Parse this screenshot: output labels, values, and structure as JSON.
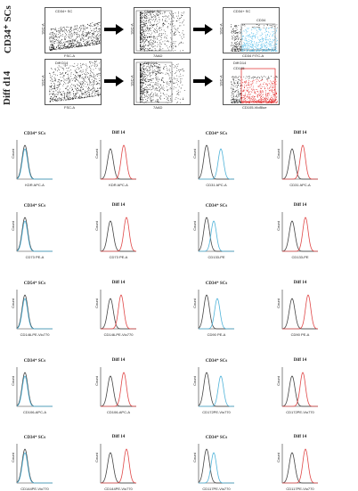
{
  "flow": {
    "row1": {
      "label": "CD34⁺ SCs",
      "plots": [
        {
          "gate": "CD34+ SC",
          "xlabel": "FSC-A",
          "ylabel": "SSC-A"
        },
        {
          "gate": "CD34+ SC",
          "xlabel": "7AAD",
          "ylabel": "SSC-A"
        },
        {
          "gate": "CD34+ SC",
          "gate2": "CD34",
          "xlabel": "CD34 FITC-A",
          "ylabel": "SSC-A"
        }
      ]
    },
    "row2": {
      "label": "Diff d14",
      "plots": [
        {
          "gate": "Diff D14",
          "xlabel": "FSC-A",
          "ylabel": "SSC-A"
        },
        {
          "gate": "Diff D14",
          "xlabel": "7AAD",
          "ylabel": "SSC-A"
        },
        {
          "gate": "Diff D14",
          "gate2": "CD105",
          "xlabel": "CD105-VioBlue",
          "ylabel": "SSC-A"
        }
      ]
    }
  },
  "histograms": [
    {
      "title": "CD34⁺ SCs",
      "xlabel": "KDR APC-A",
      "colors": [
        "#444444",
        "#4fb3d9"
      ]
    },
    {
      "title": "Diff 14",
      "xlabel": "KDR APC-A",
      "colors": [
        "#444444",
        "#e04848"
      ]
    },
    {
      "title": "CD34⁺ SCs",
      "xlabel": "CD31 APC-A",
      "colors": [
        "#444444",
        "#4fb3d9"
      ]
    },
    {
      "title": "Diff 14",
      "xlabel": "CD31 APC-A",
      "colors": [
        "#444444",
        "#e04848"
      ]
    },
    {
      "title": "CD34⁺ SCs",
      "xlabel": "CD73 PE-A",
      "colors": [
        "#444444",
        "#4fb3d9"
      ]
    },
    {
      "title": "Diff 14",
      "xlabel": "CD73 PE-A",
      "colors": [
        "#444444",
        "#e04848"
      ]
    },
    {
      "title": "CD34⁺ SCs",
      "xlabel": "CD133-PE",
      "colors": [
        "#444444",
        "#4fb3d9"
      ]
    },
    {
      "title": "Diff 14",
      "xlabel": "CD133-PE",
      "colors": [
        "#444444",
        "#e04848"
      ]
    },
    {
      "title": "CD54⁺ SCs",
      "xlabel": "CD146-PE-Vio770",
      "colors": [
        "#444444",
        "#4fb3d9"
      ]
    },
    {
      "title": "Diff 14",
      "xlabel": "CD146-PE-Vio770",
      "colors": [
        "#444444",
        "#e04848"
      ]
    },
    {
      "title": "CD34⁺ SCs",
      "xlabel": "CD90 PE-A",
      "colors": [
        "#444444",
        "#4fb3d9"
      ]
    },
    {
      "title": "Diff 14",
      "xlabel": "CD90 PE-A",
      "colors": [
        "#444444",
        "#e04848"
      ]
    },
    {
      "title": "CD34⁺ SCs",
      "xlabel": "CD106-APC-A",
      "colors": [
        "#444444",
        "#4fb3d9"
      ]
    },
    {
      "title": "Diff 14",
      "xlabel": "CD106-APC-A",
      "colors": [
        "#444444",
        "#e04848"
      ]
    },
    {
      "title": "CD34⁺ SCs",
      "xlabel": "CD172PE-Vio770",
      "colors": [
        "#444444",
        "#4fb3d9"
      ]
    },
    {
      "title": "Diff 14",
      "xlabel": "CD172PE-Vio770",
      "colors": [
        "#444444",
        "#e04848"
      ]
    },
    {
      "title": "CD34⁺ SCs",
      "xlabel": "CD144PE-Vio770",
      "colors": [
        "#444444",
        "#4fb3d9"
      ]
    },
    {
      "title": "Diff 14",
      "xlabel": "CD144PE-Vio770",
      "colors": [
        "#444444",
        "#e04848"
      ]
    },
    {
      "title": "CD34⁺ SCs",
      "xlabel": "CD117PE-Vio770",
      "colors": [
        "#444444",
        "#4fb3d9"
      ]
    },
    {
      "title": "Diff 14",
      "xlabel": "CD117PE-Vio770",
      "colors": [
        "#444444",
        "#e04848"
      ]
    }
  ],
  "hist_ylabel": "Count"
}
